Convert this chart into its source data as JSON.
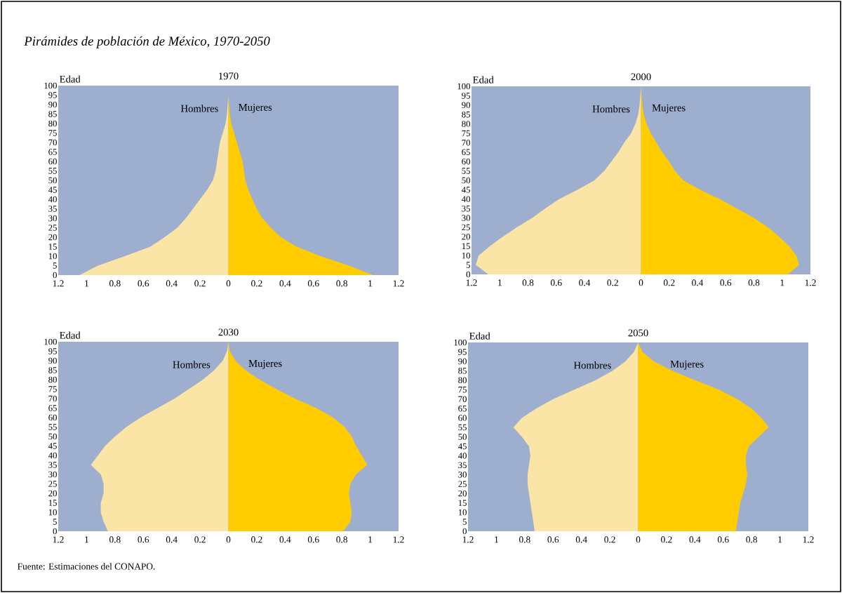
{
  "chart_data": [
    {
      "type": "area",
      "orientation": "horizontal",
      "title": "1970",
      "ylabel": "Edad",
      "annotations": [
        "Pirámides de población de México, 1970-2050"
      ],
      "x": [
        0,
        5,
        10,
        15,
        20,
        25,
        30,
        35,
        40,
        45,
        50,
        55,
        60,
        65,
        70,
        75,
        80,
        85,
        90,
        95,
        100
      ],
      "xlim": [
        -1.2,
        1.2
      ],
      "ylim": [
        0,
        100
      ],
      "xticks": [
        {
          "value": -1.2,
          "label": "1.2"
        },
        {
          "value": -1,
          "label": "1"
        },
        {
          "value": -0.8,
          "label": "0.8"
        },
        {
          "value": -0.6,
          "label": "0.6"
        },
        {
          "value": -0.4,
          "label": "0.4"
        },
        {
          "value": -0.2,
          "label": "0.2"
        },
        0,
        0.2,
        0.4,
        0.6,
        0.8,
        1,
        1.2
      ],
      "yticks": [
        0,
        5,
        10,
        15,
        20,
        25,
        30,
        35,
        40,
        45,
        50,
        55,
        60,
        65,
        70,
        75,
        80,
        85,
        90,
        95,
        100
      ],
      "series": [
        {
          "name": "Hombres",
          "color": "#fbe5a6",
          "values": [
            -1.05,
            -0.92,
            -0.73,
            -0.55,
            -0.45,
            -0.36,
            -0.3,
            -0.25,
            -0.2,
            -0.15,
            -0.11,
            -0.09,
            -0.08,
            -0.07,
            -0.06,
            -0.04,
            -0.02,
            -0.01,
            -0.005,
            0,
            0
          ]
        },
        {
          "name": "Mujeres",
          "color": "#ffcc00",
          "values": [
            1.02,
            0.85,
            0.65,
            0.48,
            0.37,
            0.3,
            0.24,
            0.2,
            0.17,
            0.14,
            0.12,
            0.11,
            0.1,
            0.08,
            0.06,
            0.04,
            0.02,
            0.01,
            0.005,
            0,
            0
          ]
        }
      ]
    },
    {
      "type": "area",
      "orientation": "horizontal",
      "title": "2000",
      "ylabel": "Edad",
      "x": [
        0,
        5,
        10,
        15,
        20,
        25,
        30,
        35,
        40,
        45,
        50,
        55,
        60,
        65,
        70,
        75,
        80,
        85,
        90,
        95,
        100
      ],
      "xlim": [
        -1.2,
        1.2
      ],
      "ylim": [
        0,
        100
      ],
      "xticks": [
        {
          "value": -1.2,
          "label": "1.2"
        },
        {
          "value": -1,
          "label": "1"
        },
        {
          "value": -0.8,
          "label": "0.8"
        },
        {
          "value": -0.6,
          "label": "0.6"
        },
        {
          "value": -0.4,
          "label": "0.4"
        },
        {
          "value": -0.2,
          "label": "0.2"
        },
        0,
        0.2,
        0.4,
        0.6,
        0.8,
        1,
        1.2
      ],
      "yticks": [
        0,
        5,
        10,
        15,
        20,
        25,
        30,
        35,
        40,
        45,
        50,
        55,
        60,
        65,
        70,
        75,
        80,
        85,
        90,
        95,
        100
      ],
      "series": [
        {
          "name": "Hombres",
          "color": "#fbe5a6",
          "values": [
            -1.08,
            -1.17,
            -1.15,
            -1.07,
            -0.98,
            -0.88,
            -0.77,
            -0.68,
            -0.58,
            -0.45,
            -0.33,
            -0.26,
            -0.21,
            -0.16,
            -0.12,
            -0.07,
            -0.04,
            -0.02,
            -0.01,
            -0.005,
            0
          ]
        },
        {
          "name": "Mujeres",
          "color": "#ffcc00",
          "values": [
            1.04,
            1.12,
            1.1,
            1.05,
            0.98,
            0.9,
            0.8,
            0.68,
            0.56,
            0.42,
            0.3,
            0.24,
            0.2,
            0.15,
            0.11,
            0.07,
            0.04,
            0.02,
            0.01,
            0.005,
            0
          ]
        }
      ]
    },
    {
      "type": "area",
      "orientation": "horizontal",
      "title": "2030",
      "ylabel": "Edad",
      "annotations": [
        "Fuente: Estimaciones del CONAPO."
      ],
      "x": [
        0,
        5,
        10,
        15,
        20,
        25,
        30,
        35,
        40,
        45,
        50,
        55,
        60,
        65,
        70,
        75,
        80,
        85,
        90,
        95,
        100
      ],
      "xlim": [
        -1.2,
        1.2
      ],
      "ylim": [
        0,
        100
      ],
      "xticks": [
        {
          "value": -1.2,
          "label": "1.2"
        },
        {
          "value": -1,
          "label": "1"
        },
        {
          "value": -0.8,
          "label": "0.8"
        },
        {
          "value": -0.6,
          "label": "0.6"
        },
        {
          "value": -0.4,
          "label": "0.4"
        },
        {
          "value": -0.2,
          "label": "0.2"
        },
        0,
        0.2,
        0.4,
        0.6,
        0.8,
        1,
        1.2
      ],
      "yticks": [
        0,
        5,
        10,
        15,
        20,
        25,
        30,
        35,
        40,
        45,
        50,
        55,
        60,
        65,
        70,
        75,
        80,
        85,
        90,
        95,
        100
      ],
      "series": [
        {
          "name": "Hombres",
          "color": "#fbe5a6",
          "values": [
            -0.85,
            -0.88,
            -0.9,
            -0.9,
            -0.88,
            -0.88,
            -0.9,
            -0.97,
            -0.92,
            -0.87,
            -0.8,
            -0.72,
            -0.62,
            -0.5,
            -0.38,
            -0.28,
            -0.18,
            -0.1,
            -0.04,
            -0.01,
            0
          ]
        },
        {
          "name": "Mujeres",
          "color": "#ffcc00",
          "values": [
            0.81,
            0.86,
            0.87,
            0.86,
            0.85,
            0.86,
            0.9,
            0.98,
            0.94,
            0.9,
            0.87,
            0.82,
            0.74,
            0.62,
            0.47,
            0.34,
            0.22,
            0.12,
            0.05,
            0.01,
            0
          ]
        }
      ]
    },
    {
      "type": "area",
      "orientation": "horizontal",
      "title": "2050",
      "ylabel": "Edad",
      "x": [
        0,
        5,
        10,
        15,
        20,
        25,
        30,
        35,
        40,
        45,
        50,
        55,
        60,
        65,
        70,
        75,
        80,
        85,
        90,
        95,
        100
      ],
      "xlim": [
        -1.2,
        1.2
      ],
      "ylim": [
        0,
        100
      ],
      "xticks": [
        {
          "value": -1.2,
          "label": "1.2"
        },
        {
          "value": -1,
          "label": "1"
        },
        {
          "value": -0.8,
          "label": "0.8"
        },
        {
          "value": -0.6,
          "label": "0.6"
        },
        {
          "value": -0.4,
          "label": "0.4"
        },
        {
          "value": -0.2,
          "label": "0.2"
        },
        0,
        0.2,
        0.4,
        0.6,
        0.8,
        1,
        1.2
      ],
      "yticks": [
        0,
        5,
        10,
        15,
        20,
        25,
        30,
        35,
        40,
        45,
        50,
        55,
        60,
        65,
        70,
        75,
        80,
        85,
        90,
        95,
        100
      ],
      "series": [
        {
          "name": "Hombres",
          "color": "#fbe5a6",
          "values": [
            -0.73,
            -0.74,
            -0.75,
            -0.76,
            -0.77,
            -0.78,
            -0.78,
            -0.77,
            -0.76,
            -0.77,
            -0.82,
            -0.88,
            -0.82,
            -0.72,
            -0.6,
            -0.45,
            -0.3,
            -0.18,
            -0.09,
            -0.03,
            0
          ]
        },
        {
          "name": "Mujeres",
          "color": "#ffcc00",
          "values": [
            0.69,
            0.7,
            0.71,
            0.72,
            0.74,
            0.76,
            0.77,
            0.76,
            0.76,
            0.78,
            0.85,
            0.92,
            0.87,
            0.8,
            0.7,
            0.57,
            0.4,
            0.24,
            0.11,
            0.03,
            0
          ]
        }
      ]
    }
  ]
}
